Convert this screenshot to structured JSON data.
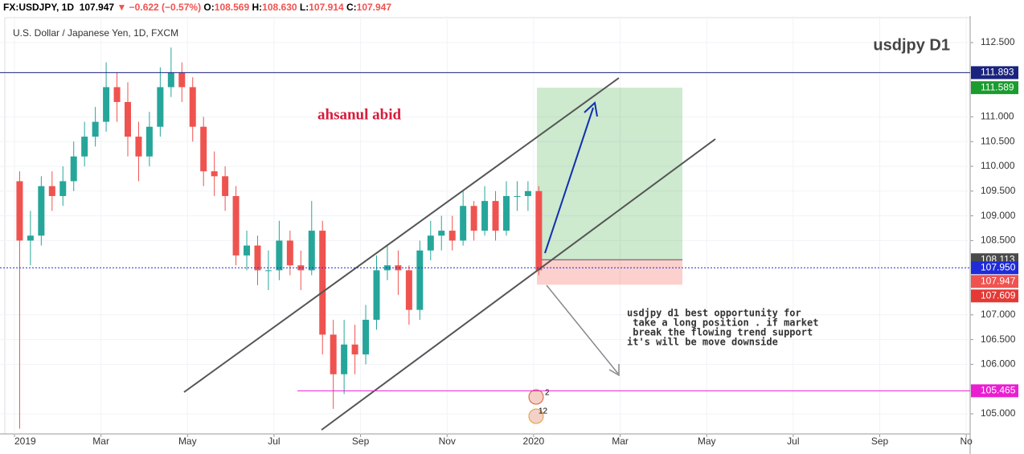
{
  "header": {
    "symbol": "FX:USDJPY, 1D",
    "last": "107.947",
    "arrow": "▼",
    "change": "−0.622 (−0.57%)",
    "o_label": "O:",
    "o": "108.569",
    "h_label": "H:",
    "h": "108.630",
    "l_label": "L:",
    "l": "107.914",
    "c_label": "C:",
    "c": "107.947"
  },
  "chart_data": {
    "type": "candlestick",
    "title": "U.S. Dollar / Japanese Yen, 1D, FXCM",
    "watermark": "usdjpy D1",
    "author": "ahsanul abid",
    "note": [
      "usdjpy d1 best opportunity for",
      " take a long position . if market",
      " break the flowing trend support",
      "it's will be move downside"
    ],
    "events": [
      "2",
      "12"
    ],
    "up_color": "#26a69a",
    "down_color": "#ef5350",
    "grid": true,
    "x": [
      0.12,
      0.37,
      0.62,
      0.87,
      1.12,
      1.37,
      1.62,
      1.87,
      2.12,
      2.37,
      2.62,
      2.87,
      3.12,
      3.37,
      3.62,
      3.87,
      4.12,
      4.37,
      4.62,
      4.87,
      5.12,
      5.37,
      5.62,
      5.87,
      6.12,
      6.37,
      6.62,
      6.87,
      7.12,
      7.37,
      7.62,
      7.87,
      8.12,
      8.37,
      8.62,
      8.87,
      9.12,
      9.37,
      9.62,
      9.87,
      10.12,
      10.37,
      10.62,
      10.87,
      11.12,
      11.37,
      11.62,
      11.87,
      12.12
    ],
    "open": [
      109.7,
      108.5,
      108.6,
      109.6,
      109.4,
      109.7,
      110.2,
      110.6,
      110.9,
      111.6,
      111.3,
      110.6,
      110.2,
      110.8,
      111.6,
      111.9,
      111.6,
      110.8,
      109.9,
      109.8,
      109.4,
      108.2,
      108.4,
      107.9,
      107.9,
      108.5,
      108.0,
      107.9,
      108.7,
      106.6,
      105.8,
      106.4,
      106.2,
      106.9,
      107.9,
      108.0,
      107.9,
      107.1,
      108.3,
      108.6,
      108.7,
      108.5,
      109.2,
      108.7,
      109.3,
      108.7,
      109.4,
      109.4,
      109.5
    ],
    "high": [
      109.9,
      109.1,
      109.8,
      109.9,
      110.0,
      110.5,
      110.9,
      111.2,
      112.1,
      111.9,
      111.7,
      110.9,
      111.1,
      112.0,
      112.4,
      112.1,
      111.8,
      111.0,
      110.3,
      110.0,
      109.6,
      108.7,
      108.6,
      108.3,
      108.9,
      108.7,
      108.3,
      109.3,
      108.9,
      106.9,
      106.9,
      106.8,
      107.2,
      108.2,
      108.4,
      108.3,
      108.0,
      108.5,
      108.9,
      109.0,
      109.0,
      109.5,
      109.3,
      109.6,
      109.5,
      109.7,
      109.7,
      109.7,
      109.6
    ],
    "low": [
      104.7,
      108.0,
      108.4,
      109.1,
      109.2,
      109.5,
      110.0,
      110.4,
      110.7,
      110.9,
      110.2,
      109.7,
      110.0,
      110.6,
      111.4,
      111.3,
      110.5,
      109.6,
      109.4,
      109.1,
      108.0,
      107.9,
      107.6,
      107.5,
      107.7,
      107.8,
      107.5,
      107.8,
      106.2,
      105.1,
      105.4,
      105.8,
      106.0,
      106.7,
      107.7,
      107.4,
      106.8,
      106.9,
      108.1,
      108.3,
      108.3,
      108.4,
      108.5,
      108.6,
      108.5,
      108.6,
      109.1,
      109.1,
      107.8
    ],
    "close": [
      108.5,
      108.6,
      109.6,
      109.4,
      109.7,
      110.2,
      110.6,
      110.9,
      111.6,
      111.3,
      110.6,
      110.2,
      110.8,
      111.6,
      111.9,
      111.6,
      110.8,
      109.9,
      109.8,
      109.4,
      108.2,
      108.4,
      107.9,
      107.9,
      108.5,
      108.0,
      107.9,
      108.7,
      106.6,
      105.8,
      106.4,
      106.2,
      106.9,
      107.9,
      108.0,
      107.9,
      107.1,
      108.3,
      108.6,
      108.7,
      108.5,
      109.2,
      108.7,
      109.3,
      108.7,
      109.4,
      109.4,
      109.5,
      107.9
    ],
    "xlim": [
      -0.334,
      22.09
    ],
    "xticks": [
      {
        "value": 0,
        "label": "2019"
      },
      {
        "value": 2,
        "label": "Mar"
      },
      {
        "value": 4,
        "label": "May"
      },
      {
        "value": 6,
        "label": "Jul"
      },
      {
        "value": 8,
        "label": "Sep"
      },
      {
        "value": 10,
        "label": "Nov"
      },
      {
        "value": 12,
        "label": "2020"
      },
      {
        "value": 14,
        "label": "Mar"
      },
      {
        "value": 16,
        "label": "May"
      },
      {
        "value": 18,
        "label": "Jul"
      },
      {
        "value": 20,
        "label": "Sep"
      },
      {
        "value": 22,
        "label": "No"
      }
    ],
    "ylim": [
      104.594,
      113.036
    ],
    "yticks": [
      {
        "value": 105,
        "label": "105.000"
      },
      {
        "value": 106,
        "label": "106.000"
      },
      {
        "value": 106.5,
        "label": "106.500"
      },
      {
        "value": 107,
        "label": "107.000"
      },
      {
        "value": 108.5,
        "label": "108.500"
      },
      {
        "value": 109,
        "label": "109.000"
      },
      {
        "value": 109.5,
        "label": "109.500"
      },
      {
        "value": 110,
        "label": "110.000"
      },
      {
        "value": 110.5,
        "label": "110.500"
      },
      {
        "value": 111,
        "label": "111.000"
      },
      {
        "value": 112.5,
        "label": "112.500"
      }
    ],
    "levels": [
      {
        "value": 111.893,
        "label": "111.893",
        "color": "#1a237e",
        "line": true
      },
      {
        "value": 111.589,
        "label": "111.589",
        "color": "#1a9c2e",
        "line": false
      },
      {
        "value": 108.113,
        "label": "108.113",
        "color": "#4a4a4a",
        "line": false
      },
      {
        "value": 107.95,
        "label": "107.950",
        "color": "#1e2bd8",
        "line": true
      },
      {
        "value": 107.947,
        "label": "107.947",
        "color": "#ef5350",
        "line": false
      },
      {
        "value": 107.609,
        "label": "107.609",
        "color": "#e53935",
        "line": false
      },
      {
        "value": 105.465,
        "label": "105.465",
        "color": "#e91ed1",
        "line": true
      }
    ]
  }
}
